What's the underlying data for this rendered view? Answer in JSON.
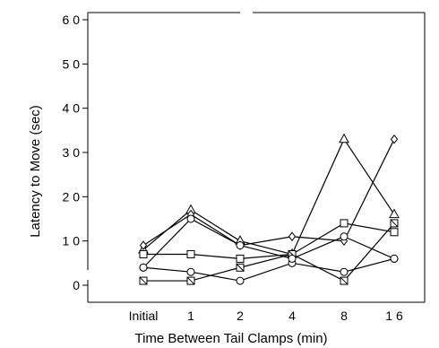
{
  "chart_data": {
    "type": "line",
    "title": "",
    "xlabel": "Time Between Tail Clamps (min)",
    "ylabel": "Latency to Move (sec)",
    "categories": [
      "Initial",
      "1",
      "2",
      "4",
      "8",
      "1 6"
    ],
    "ylim": [
      0,
      60
    ],
    "yticks": [
      {
        "value": 0,
        "label": "0"
      },
      {
        "value": 10,
        "label": "1 0"
      },
      {
        "value": 20,
        "label": "2 0"
      },
      {
        "value": 30,
        "label": "3 0"
      },
      {
        "value": 40,
        "label": "4 0"
      },
      {
        "value": 50,
        "label": "5 0"
      },
      {
        "value": 60,
        "label": "6 0"
      }
    ],
    "grid": false,
    "legend": "none",
    "series": [
      {
        "marker": "triangle",
        "values": [
          8,
          17,
          10,
          7,
          33,
          16
        ]
      },
      {
        "marker": "diamond",
        "values": [
          9,
          16,
          9,
          11,
          10,
          33
        ]
      },
      {
        "marker": "square",
        "values": [
          7,
          7,
          6,
          7,
          14,
          12
        ]
      },
      {
        "marker": "square-slash",
        "values": [
          1,
          1,
          4,
          7,
          1,
          14
        ]
      },
      {
        "marker": "circle",
        "values": [
          4,
          3,
          1,
          5,
          3,
          6
        ]
      },
      {
        "marker": "circle",
        "values": [
          4,
          15,
          9,
          6,
          11,
          6
        ]
      }
    ]
  }
}
